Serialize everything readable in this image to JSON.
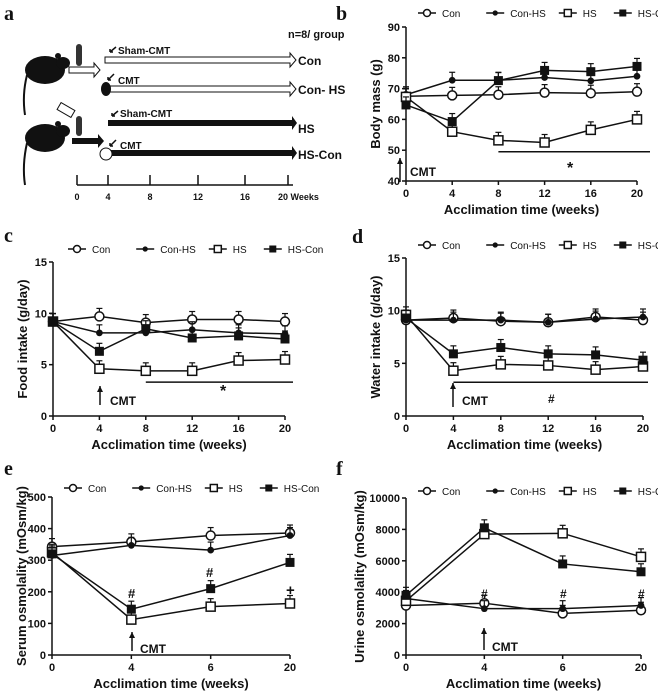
{
  "panel_labels": [
    "a",
    "b",
    "c",
    "d",
    "e",
    "f"
  ],
  "diagram": {
    "group_size": "n=8/ group",
    "treatments": [
      "Sham-CMT",
      "CMT",
      "Sham-CMT",
      "CMT"
    ],
    "groups": [
      "Con",
      "Con- HS",
      "HS",
      "HS-Con"
    ],
    "timeline_ticks": [
      "0",
      "4",
      "8",
      "12",
      "16",
      "20 Weeks"
    ]
  },
  "legend": [
    "Con",
    "Con-HS",
    "HS",
    "HS-Con"
  ],
  "series_markers": [
    "open-circle",
    "filled-circle",
    "open-square",
    "filled-square"
  ],
  "chart_data": [
    {
      "panel": "b",
      "type": "line",
      "xlabel": "Acclimation time (weeks)",
      "ylabel": "Body mass (g)",
      "x": [
        "0",
        "4",
        "8",
        "12",
        "16",
        "20"
      ],
      "ylim": [
        40,
        90
      ],
      "yticks": [
        "40",
        "50",
        "60",
        "70",
        "80",
        "90"
      ],
      "series": [
        {
          "name": "Con",
          "values": [
            67.5,
            67.8,
            68,
            68.7,
            68.5,
            69
          ]
        },
        {
          "name": "Con-HS",
          "values": [
            68,
            72.7,
            72.7,
            73.6,
            72.5,
            74
          ]
        },
        {
          "name": "HS",
          "values": [
            67.3,
            56,
            53.2,
            52.5,
            56.6,
            60
          ]
        },
        {
          "name": "HS-Con",
          "values": [
            64.7,
            59.3,
            72.6,
            75.9,
            75.5,
            77.2
          ]
        }
      ],
      "annotations": [
        "CMT",
        "*"
      ]
    },
    {
      "panel": "c",
      "type": "line",
      "xlabel": "Acclimation time (weeks)",
      "ylabel": "Food intake (g/day)",
      "x": [
        "0",
        "4",
        "8",
        "12",
        "16",
        "20"
      ],
      "ylim": [
        0,
        15
      ],
      "yticks": [
        "0",
        "5",
        "10",
        "15"
      ],
      "series": [
        {
          "name": "Con",
          "values": [
            9.2,
            9.7,
            9.1,
            9.4,
            9.4,
            9.2
          ]
        },
        {
          "name": "Con-HS",
          "values": [
            9.2,
            8.1,
            8.1,
            8.4,
            8.1,
            8.0
          ]
        },
        {
          "name": "HS",
          "values": [
            9.2,
            4.6,
            4.4,
            4.4,
            5.4,
            5.5
          ]
        },
        {
          "name": "HS-Con",
          "values": [
            9.2,
            6.3,
            8.5,
            7.6,
            7.8,
            7.5
          ]
        }
      ],
      "annotations": [
        "CMT",
        "*"
      ]
    },
    {
      "panel": "d",
      "type": "line",
      "xlabel": "Acclimation time (weeks)",
      "ylabel": "Water intake (g/day)",
      "x": [
        "0",
        "4",
        "8",
        "12",
        "16",
        "20"
      ],
      "ylim": [
        0,
        15
      ],
      "yticks": [
        "0",
        "5",
        "10",
        "15"
      ],
      "series": [
        {
          "name": "Con",
          "values": [
            9.1,
            9.3,
            9.0,
            8.9,
            9.4,
            9.1
          ]
        },
        {
          "name": "Con-HS",
          "values": [
            9.1,
            9.1,
            9.1,
            8.9,
            9.2,
            9.4
          ]
        },
        {
          "name": "HS",
          "values": [
            9.6,
            4.3,
            4.9,
            4.8,
            4.4,
            4.7
          ]
        },
        {
          "name": "HS-Con",
          "values": [
            9.3,
            5.9,
            6.5,
            5.9,
            5.8,
            5.3
          ]
        }
      ],
      "annotations": [
        "CMT",
        "#"
      ]
    },
    {
      "panel": "e",
      "type": "line",
      "xlabel": "Acclimation time (weeks)",
      "ylabel": "Serum osmolality (mOsm/kg)",
      "x": [
        "0",
        "4",
        "6",
        "20"
      ],
      "ylim": [
        0,
        500
      ],
      "yticks": [
        "0",
        "100",
        "200",
        "300",
        "400",
        "500"
      ],
      "series": [
        {
          "name": "Con",
          "values": [
            343,
            358,
            378,
            386
          ]
        },
        {
          "name": "Con-HS",
          "values": [
            315,
            347,
            332,
            378
          ]
        },
        {
          "name": "HS",
          "values": [
            325,
            112,
            153,
            163
          ]
        },
        {
          "name": "HS-Con",
          "values": [
            320,
            145,
            210,
            293
          ]
        }
      ],
      "annotations": [
        "CMT",
        "#",
        "#",
        "+"
      ]
    },
    {
      "panel": "f",
      "type": "line",
      "xlabel": "Acclimation time (weeks)",
      "ylabel": "Urine osmolality (mOsm/kg)",
      "x": [
        "0",
        "4",
        "6",
        "20"
      ],
      "ylim": [
        0,
        10000
      ],
      "yticks": [
        "0",
        "2000",
        "4000",
        "6000",
        "8000",
        "10000"
      ],
      "series": [
        {
          "name": "Con",
          "values": [
            3150,
            3300,
            2650,
            2850
          ]
        },
        {
          "name": "Con-HS",
          "values": [
            3600,
            2950,
            2950,
            3150
          ]
        },
        {
          "name": "HS",
          "values": [
            3450,
            7700,
            7750,
            6250
          ]
        },
        {
          "name": "HS-Con",
          "values": [
            3800,
            8100,
            5800,
            5300
          ]
        }
      ],
      "annotations": [
        "CMT",
        "#",
        "#",
        "#"
      ]
    }
  ]
}
